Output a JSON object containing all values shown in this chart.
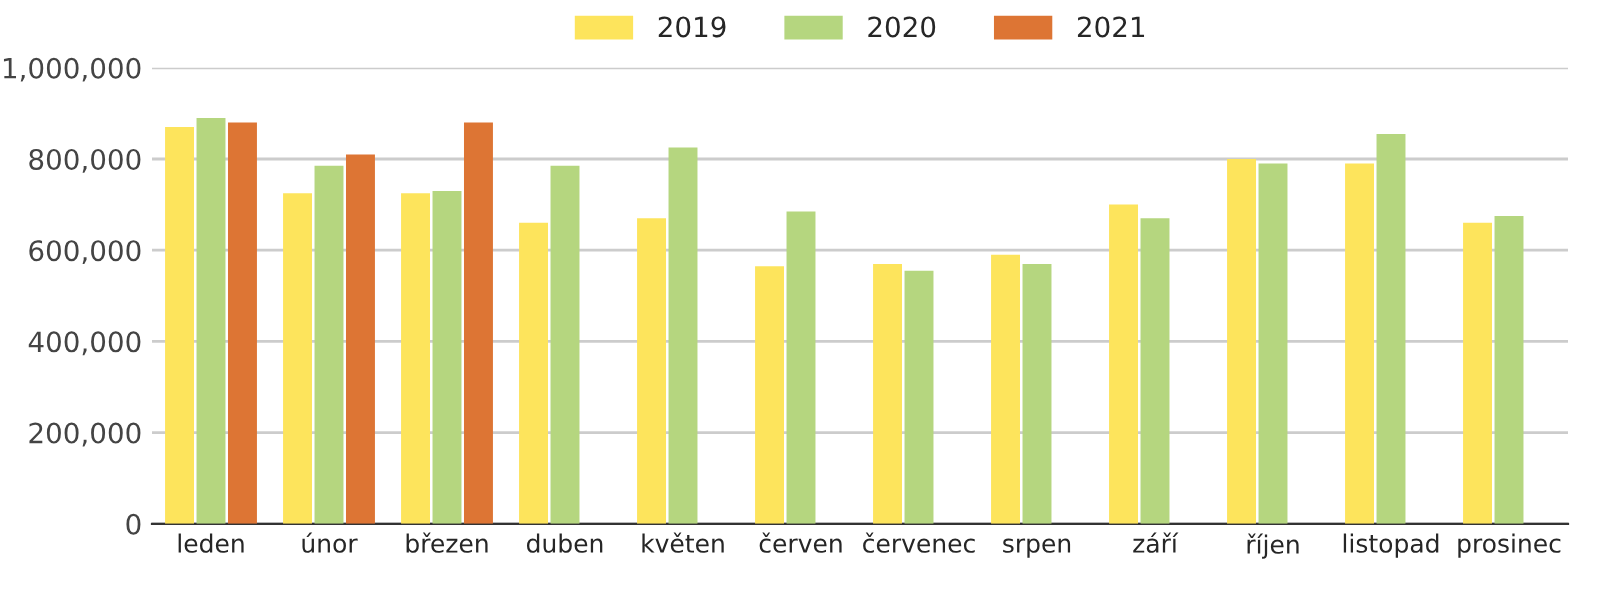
{
  "chart_data": {
    "type": "bar",
    "categories": [
      "leden",
      "únor",
      "březen",
      "duben",
      "květen",
      "červen",
      "červenec",
      "srpen",
      "září",
      "říjen",
      "listopad",
      "prosinec"
    ],
    "series": [
      {
        "name": "2019",
        "color": "#fde45c",
        "values": [
          870000,
          725000,
          725000,
          660000,
          670000,
          565000,
          570000,
          590000,
          700000,
          800000,
          790000,
          660000
        ]
      },
      {
        "name": "2020",
        "color": "#b5d67f",
        "values": [
          890000,
          785000,
          730000,
          785000,
          825000,
          685000,
          555000,
          570000,
          670000,
          790000,
          855000,
          675000
        ]
      },
      {
        "name": "2021",
        "color": "#dd7534",
        "values": [
          880000,
          810000,
          880000,
          null,
          null,
          null,
          null,
          null,
          null,
          null,
          null,
          null
        ]
      }
    ],
    "ylim": [
      0,
      1000000
    ],
    "yticks": [
      {
        "value": 0,
        "label": "0"
      },
      {
        "value": 200000,
        "label": "200,000"
      },
      {
        "value": 400000,
        "label": "400,000"
      },
      {
        "value": 600000,
        "label": "600,000"
      },
      {
        "value": 800000,
        "label": "800,000"
      },
      {
        "value": 1000000,
        "label": "1,000,000"
      }
    ],
    "grid": "y",
    "legend": "top"
  }
}
